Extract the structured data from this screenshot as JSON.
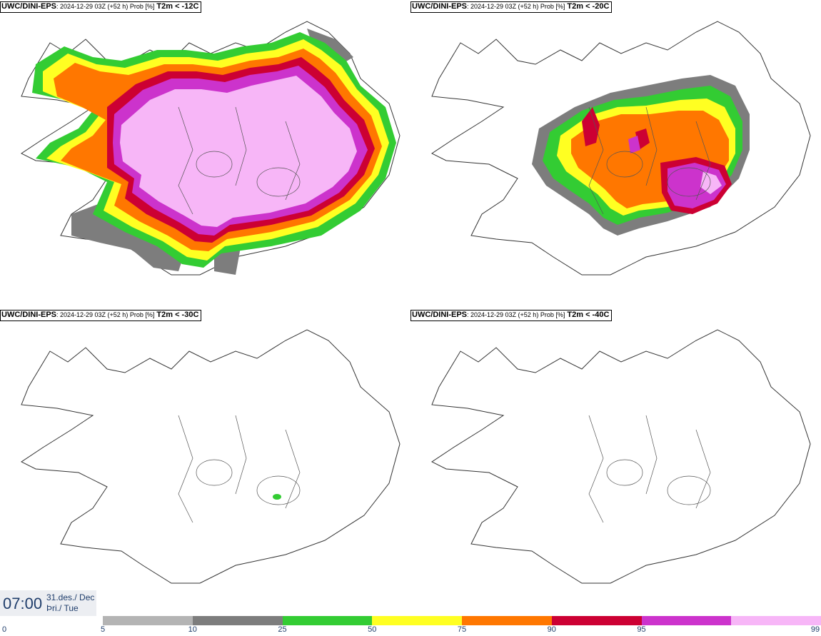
{
  "panels": [
    {
      "model": "UWC/DINI-EPS",
      "run": ": 2024-12-29 03Z (+52 h) Prob [%]",
      "field": "T2m < -12C"
    },
    {
      "model": "UWC/DINI-EPS",
      "run": ": 2024-12-29 03Z (+52 h) Prob [%]",
      "field": "T2m < -20C"
    },
    {
      "model": "UWC/DINI-EPS",
      "run": ": 2024-12-29 03Z (+52 h) Prob [%]",
      "field": "T2m < -30C"
    },
    {
      "model": "UWC/DINI-EPS",
      "run": ": 2024-12-29 03Z (+52 h) Prob [%]",
      "field": "T2m < -40C"
    }
  ],
  "valid_time": {
    "clock": "07:00",
    "date_line1": "31.des./ Dec",
    "date_line2": "Þri./ Tue"
  },
  "colorbar": {
    "ticks": [
      "0",
      "5",
      "10",
      "25",
      "50",
      "75",
      "90",
      "95",
      "99"
    ],
    "colors": [
      "#b4b4b4",
      "#7d7d7d",
      "#33cc33",
      "#ffff22",
      "#ff7700",
      "#cc0033",
      "#cc33cc",
      "#f7b6f7"
    ]
  },
  "colors": {
    "light_gray": "#b4b4b4",
    "dark_gray": "#7d7d7d",
    "green": "#33cc33",
    "yellow": "#ffff22",
    "orange": "#ff7700",
    "red": "#cc0033",
    "purple": "#cc33cc",
    "pink": "#f7b6f7",
    "label_blue": "#1f3d6b"
  }
}
